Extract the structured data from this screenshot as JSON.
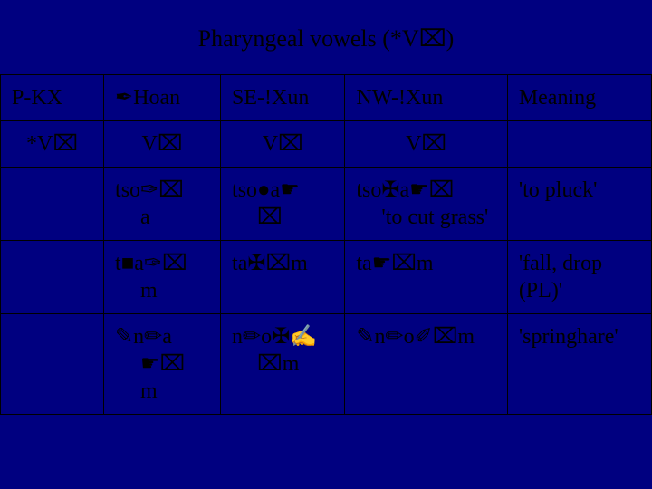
{
  "title": "Pharyngeal vowels (*V⌧)",
  "table": {
    "rows": [
      {
        "c0": "P-KX",
        "c1": "✒Hoan",
        "c2": "SE-!Xun",
        "c3": "NW-!Xun",
        "c4": "Meaning"
      },
      {
        "c0": "*V⌧",
        "c1": "V⌧",
        "c2": "V⌧",
        "c3": "V⌧",
        "c4": ""
      },
      {
        "c0": "",
        "c1": "tso✑⌧\na",
        "c2": "tso●a☛\n⌧",
        "c3": "tso✠a☛⌧\n'to cut grass'",
        "c4": "'to pluck'"
      },
      {
        "c0": "",
        "c1": "t■a✑⌧\nm",
        "c2": "ta✠⌧m",
        "c3": "ta☛⌧m",
        "c4": "'fall, drop (PL)'"
      },
      {
        "c0": "",
        "c1": "✎n✏a\n☛⌧\nm",
        "c2": "n✏o✠✍\n⌧m",
        "c3": "✎n✏o✐⌧m",
        "c4": "'springhare'"
      }
    ]
  },
  "colors": {
    "background": "#000080",
    "text": "#000000",
    "border": "#000000"
  }
}
